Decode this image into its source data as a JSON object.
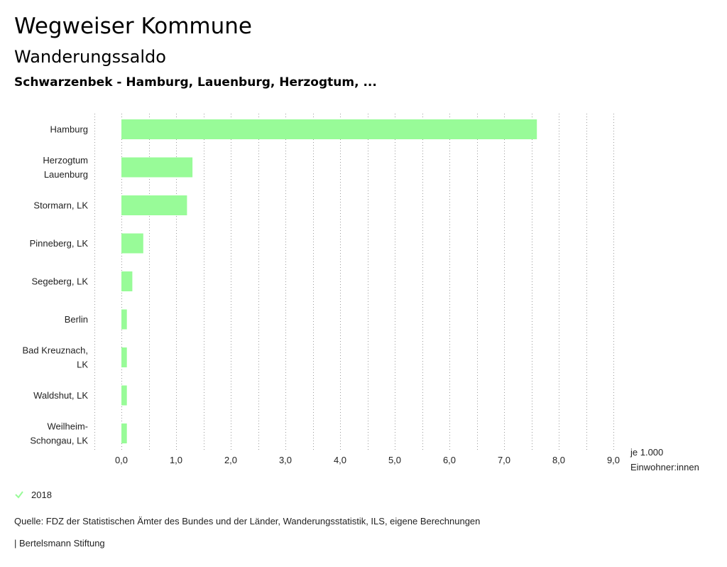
{
  "header": {
    "title": "Wegweiser Kommune",
    "subtitle": "Wanderungssaldo",
    "region": "Schwarzenbek - Hamburg, Lauenburg, Herzogtum, ..."
  },
  "legend": {
    "label": "2018",
    "icon": "check-icon"
  },
  "footer": {
    "source": "Quelle: FDZ der Statistischen Ämter des Bundes und der Länder, Wanderungsstatistik, ILS, eigene Berechnungen",
    "brand": "| Bertelsmann Stiftung"
  },
  "chart_data": {
    "type": "bar",
    "orientation": "horizontal",
    "categories": [
      [
        "Hamburg"
      ],
      [
        "Herzogtum",
        "Lauenburg"
      ],
      [
        "Stormarn, LK"
      ],
      [
        "Pinneberg, LK"
      ],
      [
        "Segeberg, LK"
      ],
      [
        "Berlin"
      ],
      [
        "Bad Kreuznach,",
        "LK"
      ],
      [
        "Waldshut, LK"
      ],
      [
        "Weilheim-",
        "Schongau, LK"
      ]
    ],
    "series": [
      {
        "name": "2018",
        "color": "#98fb98",
        "values": [
          7.6,
          1.3,
          1.2,
          0.4,
          0.2,
          0.1,
          0.1,
          0.1,
          0.1
        ]
      }
    ],
    "xlim": [
      0,
      9
    ],
    "ticks": [
      "0,0",
      "1,0",
      "2,0",
      "3,0",
      "4,0",
      "5,0",
      "6,0",
      "7,0",
      "8,0",
      "9,0"
    ],
    "xlabel": [
      "je 1.000",
      "Einwohner:innen"
    ],
    "grid": true
  }
}
